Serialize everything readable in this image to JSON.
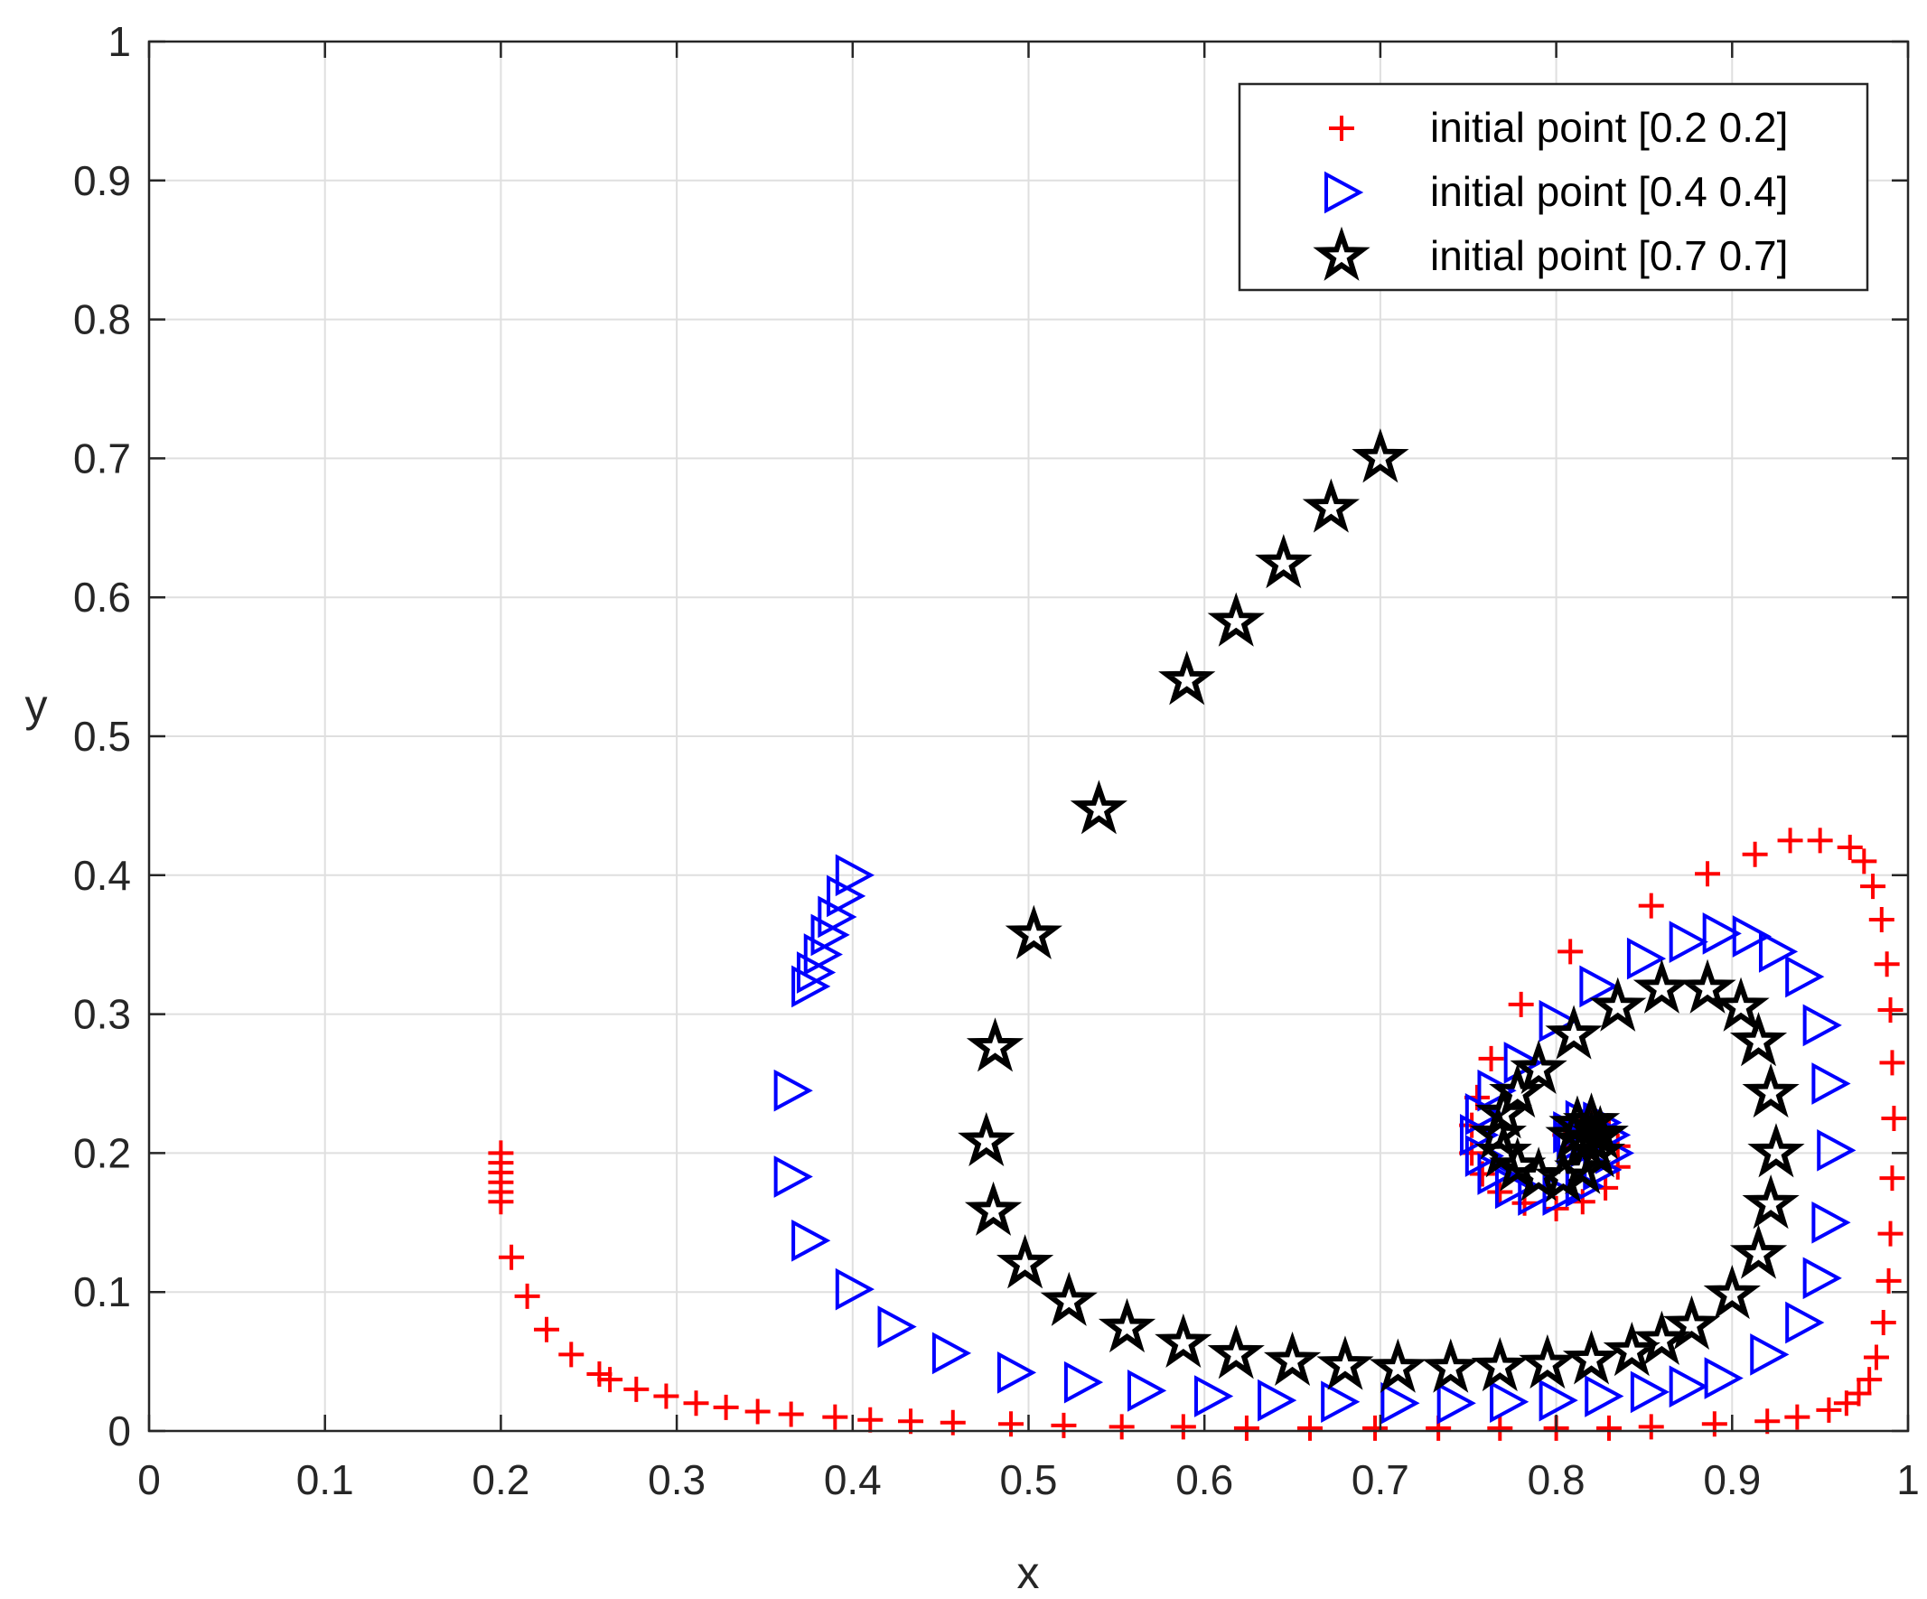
{
  "chart_data": {
    "type": "scatter",
    "title": "",
    "xlabel": "x",
    "ylabel": "y",
    "xlim": [
      0,
      1
    ],
    "ylim": [
      0,
      1
    ],
    "grid": true,
    "legend_position": "top-right",
    "xticks": [
      "0",
      "0.1",
      "0.2",
      "0.3",
      "0.4",
      "0.5",
      "0.6",
      "0.7",
      "0.8",
      "0.9",
      "1"
    ],
    "yticks": [
      "0",
      "0.1",
      "0.2",
      "0.3",
      "0.4",
      "0.5",
      "0.6",
      "0.7",
      "0.8",
      "0.9",
      "1"
    ],
    "series": [
      {
        "name": "initial point [0.2 0.2]",
        "marker": "plus",
        "color": "#ff0000",
        "points": [
          [
            0.2,
            0.2
          ],
          [
            0.2,
            0.193
          ],
          [
            0.2,
            0.186
          ],
          [
            0.2,
            0.179
          ],
          [
            0.2,
            0.172
          ],
          [
            0.2,
            0.165
          ],
          [
            0.206,
            0.125
          ],
          [
            0.215,
            0.097
          ],
          [
            0.226,
            0.073
          ],
          [
            0.24,
            0.055
          ],
          [
            0.256,
            0.041
          ],
          [
            0.262,
            0.037
          ],
          [
            0.277,
            0.03
          ],
          [
            0.294,
            0.025
          ],
          [
            0.311,
            0.02
          ],
          [
            0.328,
            0.017
          ],
          [
            0.346,
            0.014
          ],
          [
            0.365,
            0.012
          ],
          [
            0.39,
            0.01
          ],
          [
            0.41,
            0.008
          ],
          [
            0.433,
            0.007
          ],
          [
            0.457,
            0.006
          ],
          [
            0.49,
            0.005
          ],
          [
            0.52,
            0.004
          ],
          [
            0.553,
            0.003
          ],
          [
            0.588,
            0.003
          ],
          [
            0.624,
            0.002
          ],
          [
            0.66,
            0.002
          ],
          [
            0.697,
            0.002
          ],
          [
            0.733,
            0.002
          ],
          [
            0.768,
            0.002
          ],
          [
            0.8,
            0.002
          ],
          [
            0.83,
            0.002
          ],
          [
            0.854,
            0.003
          ],
          [
            0.89,
            0.005
          ],
          [
            0.92,
            0.007
          ],
          [
            0.937,
            0.01
          ],
          [
            0.955,
            0.015
          ],
          [
            0.965,
            0.02
          ],
          [
            0.972,
            0.027
          ],
          [
            0.978,
            0.037
          ],
          [
            0.982,
            0.053
          ],
          [
            0.986,
            0.078
          ],
          [
            0.989,
            0.108
          ],
          [
            0.99,
            0.142
          ],
          [
            0.991,
            0.182
          ],
          [
            0.992,
            0.225
          ],
          [
            0.991,
            0.265
          ],
          [
            0.99,
            0.303
          ],
          [
            0.988,
            0.336
          ],
          [
            0.985,
            0.368
          ],
          [
            0.98,
            0.392
          ],
          [
            0.975,
            0.41
          ],
          [
            0.967,
            0.42
          ],
          [
            0.95,
            0.425
          ],
          [
            0.933,
            0.425
          ],
          [
            0.913,
            0.415
          ],
          [
            0.886,
            0.401
          ],
          [
            0.854,
            0.378
          ],
          [
            0.808,
            0.345
          ],
          [
            0.78,
            0.307
          ],
          [
            0.763,
            0.268
          ],
          [
            0.755,
            0.24
          ],
          [
            0.752,
            0.22
          ],
          [
            0.752,
            0.2
          ],
          [
            0.758,
            0.185
          ],
          [
            0.768,
            0.172
          ],
          [
            0.782,
            0.164
          ],
          [
            0.8,
            0.16
          ],
          [
            0.815,
            0.165
          ],
          [
            0.828,
            0.175
          ],
          [
            0.835,
            0.19
          ],
          [
            0.835,
            0.205
          ],
          [
            0.83,
            0.218
          ],
          [
            0.82,
            0.225
          ],
          [
            0.81,
            0.222
          ],
          [
            0.805,
            0.213
          ],
          [
            0.81,
            0.205
          ],
          [
            0.82,
            0.205
          ]
        ]
      },
      {
        "name": "initial point [0.4 0.4]",
        "marker": "triangle-right",
        "color": "#0000ff",
        "points": [
          [
            0.4,
            0.4
          ],
          [
            0.395,
            0.385
          ],
          [
            0.39,
            0.37
          ],
          [
            0.386,
            0.357
          ],
          [
            0.382,
            0.343
          ],
          [
            0.378,
            0.33
          ],
          [
            0.375,
            0.32
          ],
          [
            0.365,
            0.245
          ],
          [
            0.365,
            0.183
          ],
          [
            0.375,
            0.137
          ],
          [
            0.4,
            0.102
          ],
          [
            0.424,
            0.075
          ],
          [
            0.455,
            0.056
          ],
          [
            0.492,
            0.042
          ],
          [
            0.53,
            0.035
          ],
          [
            0.566,
            0.029
          ],
          [
            0.604,
            0.025
          ],
          [
            0.64,
            0.022
          ],
          [
            0.676,
            0.021
          ],
          [
            0.71,
            0.02
          ],
          [
            0.742,
            0.02
          ],
          [
            0.772,
            0.021
          ],
          [
            0.8,
            0.022
          ],
          [
            0.826,
            0.025
          ],
          [
            0.852,
            0.028
          ],
          [
            0.874,
            0.032
          ],
          [
            0.894,
            0.038
          ],
          [
            0.92,
            0.055
          ],
          [
            0.94,
            0.078
          ],
          [
            0.95,
            0.11
          ],
          [
            0.955,
            0.15
          ],
          [
            0.958,
            0.202
          ],
          [
            0.955,
            0.25
          ],
          [
            0.95,
            0.292
          ],
          [
            0.94,
            0.327
          ],
          [
            0.925,
            0.345
          ],
          [
            0.91,
            0.356
          ],
          [
            0.893,
            0.358
          ],
          [
            0.874,
            0.352
          ],
          [
            0.85,
            0.34
          ],
          [
            0.823,
            0.32
          ],
          [
            0.8,
            0.295
          ],
          [
            0.78,
            0.265
          ],
          [
            0.765,
            0.245
          ],
          [
            0.758,
            0.228
          ],
          [
            0.755,
            0.213
          ],
          [
            0.758,
            0.198
          ],
          [
            0.765,
            0.185
          ],
          [
            0.775,
            0.175
          ],
          [
            0.788,
            0.17
          ],
          [
            0.802,
            0.17
          ],
          [
            0.815,
            0.176
          ],
          [
            0.825,
            0.188
          ],
          [
            0.832,
            0.2
          ],
          [
            0.83,
            0.213
          ],
          [
            0.825,
            0.222
          ],
          [
            0.815,
            0.223
          ],
          [
            0.808,
            0.215
          ],
          [
            0.81,
            0.207
          ],
          [
            0.818,
            0.205
          ]
        ]
      },
      {
        "name": "initial point [0.7 0.7]",
        "marker": "star",
        "color": "#000000",
        "points": [
          [
            0.7,
            0.7
          ],
          [
            0.672,
            0.664
          ],
          [
            0.645,
            0.624
          ],
          [
            0.618,
            0.582
          ],
          [
            0.59,
            0.54
          ],
          [
            0.54,
            0.447
          ],
          [
            0.503,
            0.357
          ],
          [
            0.481,
            0.276
          ],
          [
            0.476,
            0.208
          ],
          [
            0.48,
            0.158
          ],
          [
            0.498,
            0.12
          ],
          [
            0.523,
            0.093
          ],
          [
            0.556,
            0.074
          ],
          [
            0.588,
            0.063
          ],
          [
            0.618,
            0.055
          ],
          [
            0.65,
            0.05
          ],
          [
            0.68,
            0.047
          ],
          [
            0.71,
            0.045
          ],
          [
            0.74,
            0.045
          ],
          [
            0.768,
            0.046
          ],
          [
            0.795,
            0.048
          ],
          [
            0.82,
            0.051
          ],
          [
            0.843,
            0.057
          ],
          [
            0.86,
            0.065
          ],
          [
            0.877,
            0.076
          ],
          [
            0.9,
            0.098
          ],
          [
            0.915,
            0.127
          ],
          [
            0.922,
            0.163
          ],
          [
            0.925,
            0.2
          ],
          [
            0.922,
            0.243
          ],
          [
            0.915,
            0.28
          ],
          [
            0.905,
            0.305
          ],
          [
            0.886,
            0.318
          ],
          [
            0.86,
            0.318
          ],
          [
            0.835,
            0.305
          ],
          [
            0.81,
            0.285
          ],
          [
            0.79,
            0.26
          ],
          [
            0.778,
            0.243
          ],
          [
            0.77,
            0.228
          ],
          [
            0.767,
            0.213
          ],
          [
            0.77,
            0.2
          ],
          [
            0.778,
            0.19
          ],
          [
            0.79,
            0.183
          ],
          [
            0.804,
            0.182
          ],
          [
            0.815,
            0.188
          ],
          [
            0.823,
            0.2
          ],
          [
            0.825,
            0.213
          ],
          [
            0.82,
            0.222
          ],
          [
            0.812,
            0.22
          ],
          [
            0.81,
            0.212
          ],
          [
            0.816,
            0.208
          ],
          [
            0.82,
            0.21
          ]
        ]
      }
    ]
  }
}
